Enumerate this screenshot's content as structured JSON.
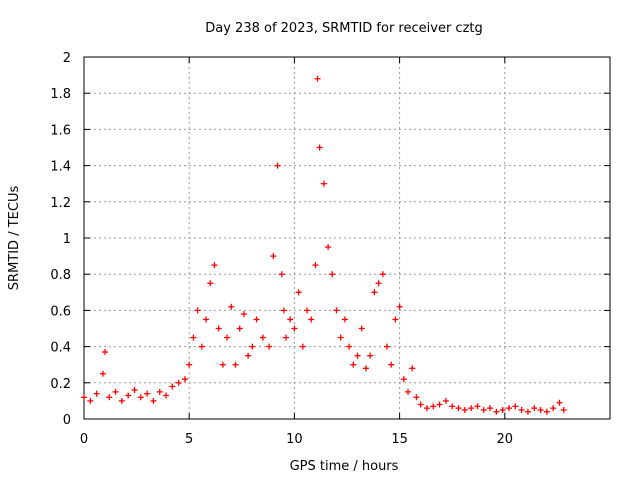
{
  "chart_data": {
    "type": "scatter",
    "title": "Day 238 of 2023, SRMTID for receiver cztg",
    "xlabel": "GPS time / hours",
    "ylabel": "SRMTID / TECUs",
    "xlim": [
      0,
      25
    ],
    "ylim": [
      0,
      2
    ],
    "x_ticks": [
      0,
      5,
      10,
      15,
      20
    ],
    "x_tick_labels": [
      "0",
      "5",
      "10",
      "15",
      "20"
    ],
    "y_ticks": [
      0,
      0.2,
      0.4,
      0.6,
      0.8,
      1,
      1.2,
      1.4,
      1.6,
      1.8,
      2
    ],
    "y_tick_labels": [
      "0",
      "0.2",
      "0.4",
      "0.6",
      "0.8",
      "1",
      "1.2",
      "1.4",
      "1.6",
      "1.8",
      "2"
    ],
    "grid": true,
    "marker": "+",
    "series": [
      {
        "name": "SRMTID",
        "color": "#ff0000",
        "x": [
          0.0,
          0.3,
          0.6,
          0.9,
          1.0,
          1.2,
          1.5,
          1.8,
          2.1,
          2.4,
          2.7,
          3.0,
          3.3,
          3.6,
          3.9,
          4.2,
          4.5,
          4.8,
          5.0,
          5.2,
          5.4,
          5.6,
          5.8,
          6.0,
          6.2,
          6.4,
          6.6,
          6.8,
          7.0,
          7.2,
          7.4,
          7.6,
          7.8,
          8.0,
          8.2,
          8.5,
          8.8,
          9.0,
          9.2,
          9.4,
          9.5,
          9.6,
          9.8,
          10.0,
          10.2,
          10.4,
          10.6,
          10.8,
          11.0,
          11.1,
          11.2,
          11.4,
          11.6,
          11.8,
          12.0,
          12.2,
          12.4,
          12.6,
          12.8,
          13.0,
          13.2,
          13.4,
          13.6,
          13.8,
          14.0,
          14.2,
          14.4,
          14.6,
          14.8,
          15.0,
          15.2,
          15.4,
          15.6,
          15.8,
          16.0,
          16.3,
          16.6,
          16.9,
          17.2,
          17.5,
          17.8,
          18.1,
          18.4,
          18.7,
          19.0,
          19.3,
          19.6,
          19.9,
          20.2,
          20.5,
          20.8,
          21.1,
          21.4,
          21.7,
          22.0,
          22.3,
          22.6,
          22.8
        ],
        "y": [
          0.12,
          0.1,
          0.14,
          0.25,
          0.37,
          0.12,
          0.15,
          0.1,
          0.13,
          0.16,
          0.12,
          0.14,
          0.1,
          0.15,
          0.13,
          0.18,
          0.2,
          0.22,
          0.3,
          0.45,
          0.6,
          0.4,
          0.55,
          0.75,
          0.85,
          0.5,
          0.3,
          0.45,
          0.62,
          0.3,
          0.5,
          0.58,
          0.35,
          0.4,
          0.55,
          0.45,
          0.4,
          0.9,
          1.4,
          0.8,
          0.6,
          0.45,
          0.55,
          0.5,
          0.7,
          0.4,
          0.6,
          0.55,
          0.85,
          1.88,
          1.5,
          1.3,
          0.95,
          0.8,
          0.6,
          0.45,
          0.55,
          0.4,
          0.3,
          0.35,
          0.5,
          0.28,
          0.35,
          0.7,
          0.75,
          0.8,
          0.4,
          0.3,
          0.55,
          0.62,
          0.22,
          0.15,
          0.28,
          0.12,
          0.08,
          0.06,
          0.07,
          0.08,
          0.1,
          0.07,
          0.06,
          0.05,
          0.06,
          0.07,
          0.05,
          0.06,
          0.04,
          0.05,
          0.06,
          0.07,
          0.05,
          0.04,
          0.06,
          0.05,
          0.04,
          0.06,
          0.09,
          0.05
        ]
      }
    ]
  }
}
